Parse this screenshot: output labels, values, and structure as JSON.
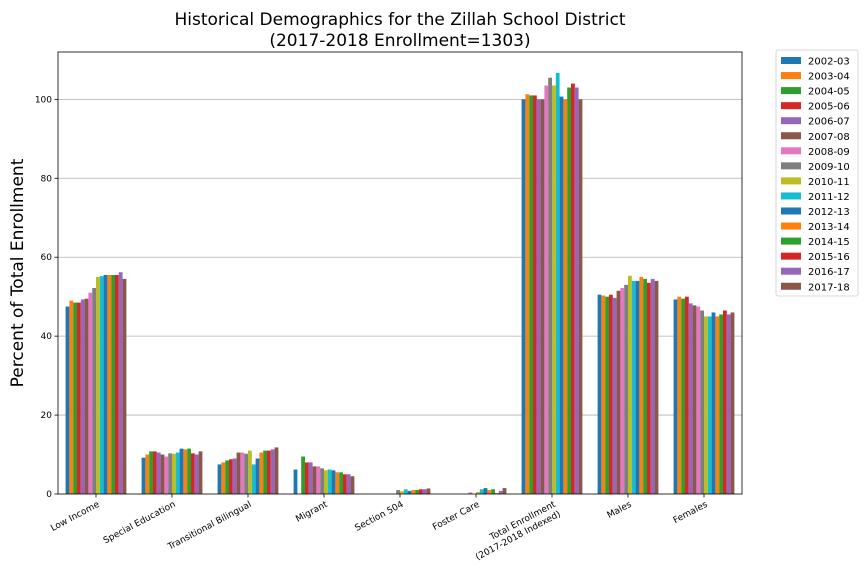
{
  "chart_data": {
    "type": "bar",
    "title_line1": "Historical Demographics for the Zillah School District",
    "title_line2": "(2017-2018 Enrollment=1303)",
    "xlabel": "",
    "ylabel": "Percent of Total Enrollment",
    "ylim": [
      0,
      112
    ],
    "yticks": [
      0,
      20,
      40,
      60,
      80,
      100
    ],
    "grid": "horizontal",
    "legend_position": "outside-right",
    "categories": [
      "Low Income",
      "Special Education",
      "Transitional Bilingual",
      "Migrant",
      "Section 504",
      "Foster Care",
      "Total Enrollment\n(2017-2018 Indexed)",
      "Males",
      "Females"
    ],
    "series": [
      {
        "name": "2002-03",
        "color": "#1f77b4",
        "values": [
          47.5,
          9.2,
          7.5,
          6.2,
          0,
          0,
          100.0,
          50.5,
          49.3
        ]
      },
      {
        "name": "2003-04",
        "color": "#ff7f0e",
        "values": [
          49.0,
          10.0,
          8.0,
          0,
          0,
          0,
          101.3,
          50.3,
          50.0
        ]
      },
      {
        "name": "2004-05",
        "color": "#2ca02c",
        "values": [
          48.5,
          10.8,
          8.5,
          9.5,
          0,
          0,
          101.0,
          50.0,
          49.5
        ]
      },
      {
        "name": "2005-06",
        "color": "#d62728",
        "values": [
          48.5,
          10.8,
          8.8,
          8.0,
          0,
          0,
          101.0,
          50.5,
          50.0
        ]
      },
      {
        "name": "2006-07",
        "color": "#9467bd",
        "values": [
          49.3,
          10.5,
          9.0,
          8.0,
          0,
          0,
          100.0,
          49.7,
          48.3
        ]
      },
      {
        "name": "2007-08",
        "color": "#8c564b",
        "values": [
          49.5,
          10.0,
          10.5,
          7.0,
          0,
          0,
          100.0,
          51.5,
          47.8
        ]
      },
      {
        "name": "2008-09",
        "color": "#e377c2",
        "values": [
          51.0,
          9.5,
          10.5,
          7.0,
          0,
          0.4,
          103.5,
          52.2,
          47.5
        ]
      },
      {
        "name": "2009-10",
        "color": "#7f7f7f",
        "values": [
          52.2,
          10.3,
          10.2,
          6.5,
          1.0,
          0,
          105.5,
          53.0,
          46.5
        ]
      },
      {
        "name": "2010-11",
        "color": "#bcbd22",
        "values": [
          55.0,
          10.2,
          11.0,
          6.0,
          0.7,
          0.5,
          103.5,
          55.3,
          45.0
        ]
      },
      {
        "name": "2011-12",
        "color": "#17becf",
        "values": [
          55.2,
          10.5,
          7.5,
          6.2,
          1.2,
          1.2,
          106.7,
          54.0,
          45.0
        ]
      },
      {
        "name": "2012-13",
        "color": "#1f77b4",
        "values": [
          55.5,
          11.5,
          9.0,
          6.0,
          0.8,
          1.5,
          100.7,
          54.0,
          46.0
        ]
      },
      {
        "name": "2013-14",
        "color": "#ff7f0e",
        "values": [
          55.5,
          11.3,
          10.5,
          5.5,
          1.0,
          1.0,
          100.0,
          55.0,
          45.0
        ]
      },
      {
        "name": "2014-15",
        "color": "#2ca02c",
        "values": [
          55.5,
          11.5,
          11.0,
          5.5,
          1.0,
          1.2,
          103.0,
          54.5,
          45.5
        ]
      },
      {
        "name": "2015-16",
        "color": "#d62728",
        "values": [
          55.5,
          10.3,
          11.0,
          5.0,
          1.2,
          0.2,
          104.0,
          53.5,
          46.5
        ]
      },
      {
        "name": "2016-17",
        "color": "#9467bd",
        "values": [
          56.2,
          10.0,
          11.3,
          5.0,
          1.2,
          0.8,
          103.0,
          54.5,
          45.5
        ]
      },
      {
        "name": "2017-18",
        "color": "#8c564b",
        "values": [
          54.5,
          10.8,
          11.8,
          4.5,
          1.4,
          1.5,
          100.0,
          54.0,
          46.0
        ]
      }
    ]
  }
}
